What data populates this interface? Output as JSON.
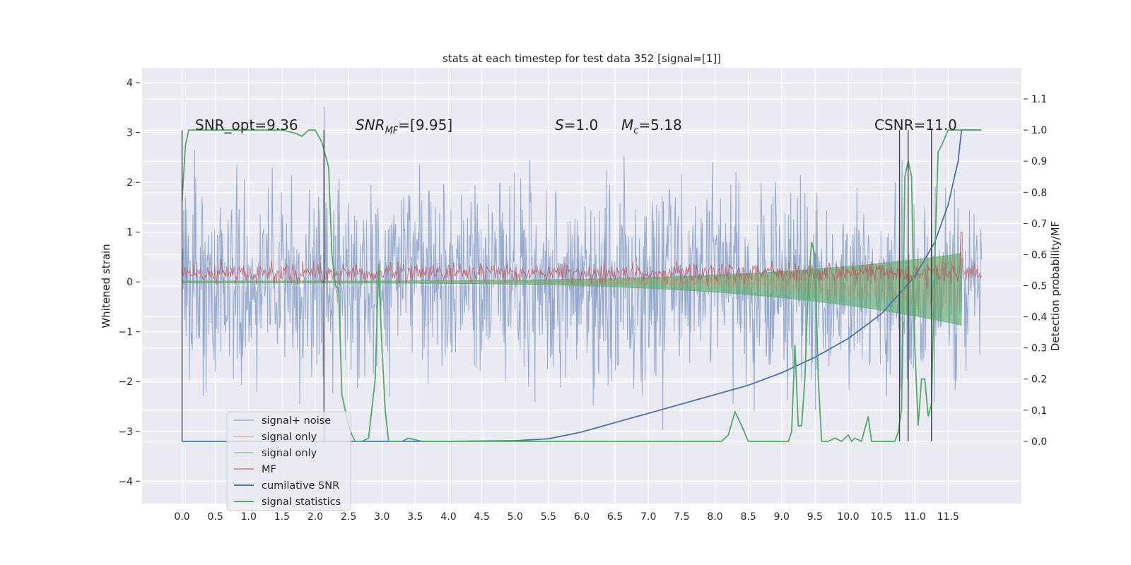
{
  "chart_data": {
    "type": "line",
    "title": "stats at each timestep for test data 352 [signal=[1]]",
    "ylabel": "Whitened strain",
    "y2label": "Detection probability/MF",
    "xlim": [
      -0.6,
      12.6
    ],
    "ylim": [
      -4.45,
      4.3
    ],
    "y2lim": [
      -0.2,
      1.2
    ],
    "x_ticks": [
      "0.0",
      "0.5",
      "1.0",
      "1.5",
      "2.0",
      "2.5",
      "3.0",
      "3.5",
      "4.0",
      "4.5",
      "5.0",
      "5.5",
      "6.0",
      "6.5",
      "7.0",
      "7.5",
      "8.0",
      "8.5",
      "9.0",
      "9.5",
      "10.0",
      "10.5",
      "11.0",
      "11.5"
    ],
    "y_ticks": [
      "4",
      "3",
      "2",
      "1",
      "0",
      "−1",
      "−2",
      "−3",
      "−4"
    ],
    "y2_ticks": [
      "1.1",
      "1.0",
      "0.9",
      "0.8",
      "0.7",
      "0.6",
      "0.5",
      "0.4",
      "0.3",
      "0.2",
      "0.1",
      "0.0"
    ],
    "grid": true,
    "legend_position": "lower-left",
    "annotations": {
      "snr_opt": "SNR_opt=9.36",
      "snr_mf_main": "SNR",
      "snr_mf_sub": "MF",
      "snr_mf_value": "=[9.95]",
      "s_main": "S",
      "s_value": "=1.0",
      "mc_main": "M",
      "mc_sub": "c",
      "mc_value": "=5.18",
      "csnr": "CSNR=11.0"
    },
    "vlines_x": [
      0.0,
      2.13,
      10.77,
      10.9,
      11.25
    ],
    "series": [
      {
        "name": "signal+ noise",
        "color": "#4c72b0",
        "kind": "noise",
        "x_range": [
          0.0,
          12.0
        ],
        "std": 1.0,
        "max_abs": 3.9
      },
      {
        "name": "signal only",
        "color": "#dd8452",
        "kind": "chirp",
        "x_range": [
          0.0,
          11.7
        ],
        "peak": 0.62
      },
      {
        "name": "signal only",
        "color": "#55a868",
        "kind": "chirp-band",
        "x_range": [
          0.0,
          11.7
        ],
        "upper_peak": 0.55,
        "lower_peak": -0.85
      },
      {
        "name": "MF",
        "color": "#c44e52",
        "kind": "noise",
        "x_range": [
          0.0,
          12.0
        ],
        "std": 0.1,
        "mean": 0.18,
        "peak_at_11_7": 1.0
      },
      {
        "name": "cumilative SNR",
        "color": "#4c72b0",
        "axis": "right",
        "x": [
          0.0,
          2.0,
          4.0,
          5.0,
          5.5,
          6.0,
          6.5,
          7.0,
          7.5,
          8.0,
          8.5,
          9.0,
          9.5,
          10.0,
          10.5,
          11.0,
          11.3,
          11.5,
          11.65,
          11.7,
          12.0
        ],
        "y": [
          0.0,
          0.0,
          0.0,
          0.002,
          0.008,
          0.03,
          0.06,
          0.09,
          0.12,
          0.15,
          0.18,
          0.22,
          0.27,
          0.33,
          0.41,
          0.53,
          0.64,
          0.76,
          0.9,
          1.0,
          1.0
        ]
      },
      {
        "name": "signal statistics",
        "color": "#55a868",
        "axis": "right",
        "x": [
          0.0,
          0.05,
          0.1,
          0.3,
          1.0,
          1.5,
          1.7,
          1.8,
          1.9,
          2.0,
          2.1,
          2.2,
          2.25,
          2.3,
          2.35,
          2.4,
          2.45,
          2.5,
          2.55,
          2.6,
          2.7,
          2.8,
          2.9,
          2.95,
          3.0,
          3.05,
          3.1,
          3.3,
          3.4,
          3.6,
          4.0,
          5.0,
          6.0,
          7.0,
          8.0,
          8.1,
          8.2,
          8.3,
          8.4,
          8.5,
          9.0,
          9.1,
          9.15,
          9.2,
          9.25,
          9.3,
          9.35,
          9.4,
          9.45,
          9.5,
          9.55,
          9.6,
          9.7,
          9.8,
          9.9,
          10.0,
          10.05,
          10.1,
          10.2,
          10.3,
          10.35,
          10.4,
          10.45,
          10.5,
          10.7,
          10.75,
          10.8,
          10.85,
          10.9,
          10.95,
          11.0,
          11.05,
          11.1,
          11.15,
          11.2,
          11.25,
          11.3,
          11.35,
          11.4,
          11.5,
          11.6,
          11.7,
          12.0
        ],
        "y": [
          0.77,
          0.95,
          1.0,
          1.0,
          1.0,
          1.0,
          0.99,
          0.98,
          1.0,
          1.0,
          0.96,
          0.88,
          0.6,
          0.5,
          0.49,
          0.15,
          0.1,
          0.05,
          0.02,
          0.0,
          0.0,
          0.01,
          0.2,
          0.57,
          0.3,
          0.1,
          0.0,
          0.0,
          0.01,
          0.0,
          0.0,
          0.0,
          0.0,
          0.0,
          0.0,
          0.0,
          0.02,
          0.095,
          0.05,
          0.0,
          0.0,
          0.0,
          0.03,
          0.31,
          0.05,
          0.05,
          0.2,
          0.5,
          0.64,
          0.6,
          0.2,
          0.0,
          0.0,
          0.01,
          0.0,
          0.02,
          0.0,
          0.01,
          0.0,
          0.08,
          0.0,
          0.0,
          0.0,
          0.0,
          0.0,
          0.03,
          0.1,
          0.85,
          0.9,
          0.85,
          0.3,
          0.05,
          0.2,
          0.2,
          0.08,
          0.12,
          0.6,
          0.93,
          0.95,
          1.0,
          1.0,
          1.0,
          1.0
        ]
      }
    ]
  }
}
